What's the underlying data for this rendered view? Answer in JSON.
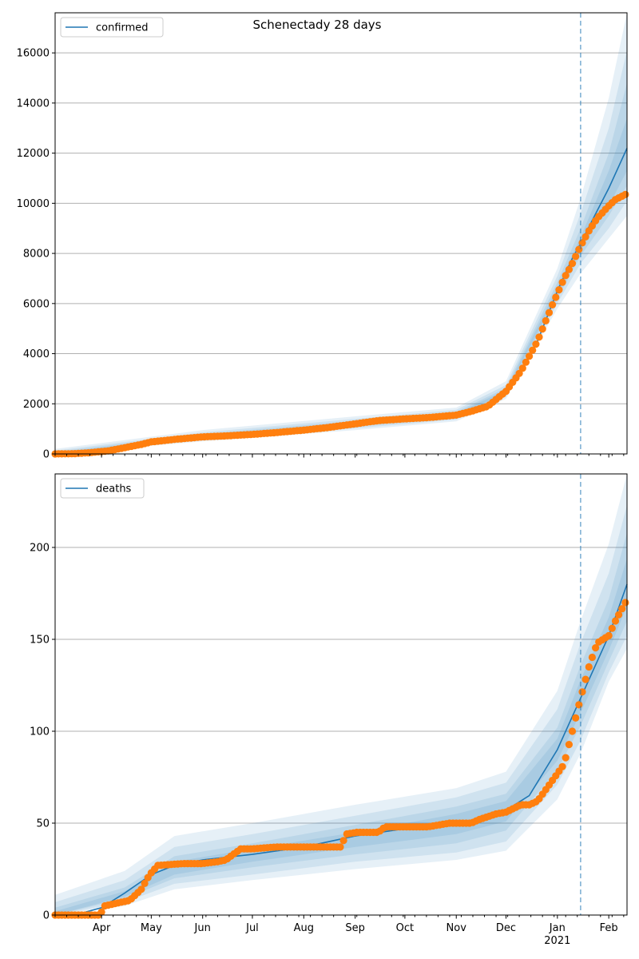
{
  "title": "Schenectady 28 days",
  "colors": {
    "line": "#1f77b4",
    "dots": "#ff7f0e",
    "band": "#1f77b4",
    "grid": "#b0b0b0"
  },
  "x_axis": {
    "domain_start": "2020-03-04",
    "domain_end": "2021-02-12",
    "ticks": [
      {
        "date": "2020-04-01",
        "label": "Apr"
      },
      {
        "date": "2020-05-01",
        "label": "May"
      },
      {
        "date": "2020-06-01",
        "label": "Jun"
      },
      {
        "date": "2020-07-01",
        "label": "Jul"
      },
      {
        "date": "2020-08-01",
        "label": "Aug"
      },
      {
        "date": "2020-09-01",
        "label": "Sep"
      },
      {
        "date": "2020-10-01",
        "label": "Oct"
      },
      {
        "date": "2020-11-01",
        "label": "Nov"
      },
      {
        "date": "2020-12-01",
        "label": "Dec"
      },
      {
        "date": "2021-01-01",
        "label": "Jan",
        "sublabel": "2021"
      },
      {
        "date": "2021-02-01",
        "label": "Feb"
      }
    ],
    "forecast_start": "2021-01-15"
  },
  "chart_data": [
    {
      "type": "line",
      "legend": "confirmed",
      "legend_position": "upper-left",
      "grid": "horizontal",
      "ylim": [
        0,
        17600
      ],
      "yticks": [
        0,
        2000,
        4000,
        6000,
        8000,
        10000,
        12000,
        14000,
        16000
      ],
      "observed": {
        "x": [
          "2020-03-04",
          "2020-03-15",
          "2020-03-25",
          "2020-04-05",
          "2020-04-15",
          "2020-04-25",
          "2020-05-01",
          "2020-05-15",
          "2020-06-01",
          "2020-06-15",
          "2020-07-01",
          "2020-07-15",
          "2020-08-01",
          "2020-08-15",
          "2020-09-01",
          "2020-09-15",
          "2020-10-01",
          "2020-10-15",
          "2020-11-01",
          "2020-11-10",
          "2020-11-20",
          "2020-12-01",
          "2020-12-10",
          "2020-12-20",
          "2020-12-28",
          "2021-01-05",
          "2021-01-10",
          "2021-01-15",
          "2021-01-20",
          "2021-01-25",
          "2021-02-01",
          "2021-02-05",
          "2021-02-11"
        ],
        "y": [
          0,
          10,
          50,
          120,
          250,
          380,
          480,
          580,
          680,
          720,
          780,
          850,
          950,
          1050,
          1200,
          1330,
          1400,
          1450,
          1550,
          1700,
          1900,
          2500,
          3300,
          4500,
          5800,
          7000,
          7600,
          8300,
          8900,
          9400,
          9900,
          10150,
          10350
        ]
      },
      "fit": {
        "x": [
          "2020-03-04",
          "2020-04-01",
          "2020-05-01",
          "2020-06-01",
          "2020-07-01",
          "2020-08-01",
          "2020-09-01",
          "2020-10-01",
          "2020-11-01",
          "2020-11-20",
          "2020-12-01",
          "2020-12-10",
          "2020-12-20",
          "2021-01-01",
          "2021-01-10",
          "2021-01-15",
          "2021-01-25",
          "2021-02-01",
          "2021-02-12"
        ],
        "y": [
          0,
          100,
          480,
          680,
          780,
          950,
          1200,
          1400,
          1550,
          1900,
          2500,
          3300,
          4500,
          6500,
          7800,
          8400,
          9700,
          10600,
          12200
        ]
      },
      "band_x": [
        "2020-03-04",
        "2020-06-01",
        "2020-09-01",
        "2020-11-01",
        "2020-12-01",
        "2021-01-01",
        "2021-01-15",
        "2021-02-01",
        "2021-02-12"
      ],
      "bands": [
        {
          "lower": [
            0,
            500,
            950,
            1300,
            2200,
            5800,
            7200,
            8600,
            9500
          ],
          "upper": [
            200,
            950,
            1500,
            1850,
            2900,
            7400,
            10200,
            14200,
            17600
          ]
        },
        {
          "lower": [
            0,
            560,
            1020,
            1370,
            2300,
            6000,
            7600,
            9000,
            10100
          ],
          "upper": [
            130,
            860,
            1400,
            1760,
            2750,
            7100,
            9600,
            13000,
            16100
          ]
        },
        {
          "lower": [
            0,
            610,
            1090,
            1440,
            2380,
            6200,
            7900,
            9500,
            10700
          ],
          "upper": [
            80,
            790,
            1320,
            1680,
            2630,
            6850,
            9000,
            12000,
            14800
          ]
        },
        {
          "lower": [
            0,
            640,
            1140,
            1490,
            2440,
            6350,
            8150,
            9900,
            11300
          ],
          "upper": [
            40,
            740,
            1260,
            1620,
            2550,
            6650,
            8650,
            11300,
            13400
          ]
        }
      ]
    },
    {
      "type": "line",
      "legend": "deaths",
      "legend_position": "upper-left",
      "grid": "horizontal",
      "ylim": [
        0,
        240
      ],
      "yticks": [
        0,
        50,
        100,
        150,
        200
      ],
      "observed": {
        "x": [
          "2020-03-04",
          "2020-03-31",
          "2020-04-03",
          "2020-04-13",
          "2020-04-18",
          "2020-04-25",
          "2020-04-30",
          "2020-05-05",
          "2020-05-20",
          "2020-06-01",
          "2020-06-10",
          "2020-06-15",
          "2020-06-24",
          "2020-07-01",
          "2020-07-15",
          "2020-08-01",
          "2020-08-24",
          "2020-08-26",
          "2020-09-02",
          "2020-09-15",
          "2020-09-19",
          "2020-10-01",
          "2020-10-15",
          "2020-10-28",
          "2020-11-10",
          "2020-11-15",
          "2020-11-25",
          "2020-12-01",
          "2020-12-10",
          "2020-12-15",
          "2020-12-20",
          "2020-12-28",
          "2021-01-05",
          "2021-01-10",
          "2021-01-15",
          "2021-01-20",
          "2021-01-25",
          "2021-02-01",
          "2021-02-05",
          "2021-02-11"
        ],
        "y": [
          0,
          0,
          5,
          7,
          8,
          14,
          22,
          27,
          28,
          28,
          29,
          30,
          36,
          36,
          37,
          37,
          37,
          44,
          45,
          45,
          48,
          48,
          48,
          50,
          50,
          52,
          55,
          56,
          60,
          60,
          62,
          72,
          82,
          100,
          118,
          135,
          148,
          152,
          160,
          170
        ]
      },
      "fit": {
        "x": [
          "2020-03-04",
          "2020-03-20",
          "2020-04-01",
          "2020-04-15",
          "2020-05-01",
          "2020-05-15",
          "2020-06-01",
          "2020-07-01",
          "2020-08-01",
          "2020-09-01",
          "2020-10-01",
          "2020-11-01",
          "2020-11-20",
          "2020-12-01",
          "2020-12-15",
          "2021-01-01",
          "2021-01-15",
          "2021-02-01",
          "2021-02-12"
        ],
        "y": [
          0,
          1,
          4,
          12,
          22,
          27,
          30,
          33,
          37,
          43,
          47,
          50,
          53,
          57,
          65,
          90,
          118,
          152,
          180
        ]
      },
      "band_x": [
        "2020-03-04",
        "2020-04-15",
        "2020-05-15",
        "2020-07-01",
        "2020-09-01",
        "2020-11-01",
        "2020-12-01",
        "2021-01-01",
        "2021-01-15",
        "2021-02-01",
        "2021-02-12"
      ],
      "bands": [
        {
          "lower": [
            0,
            5,
            14,
            19,
            25,
            30,
            35,
            63,
            88,
            127,
            145
          ],
          "upper": [
            11,
            24,
            43,
            50,
            60,
            69,
            78,
            122,
            160,
            202,
            240
          ]
        },
        {
          "lower": [
            0,
            7,
            17,
            22,
            29,
            34,
            40,
            71,
            95,
            132,
            152
          ],
          "upper": [
            7,
            19,
            37,
            44,
            54,
            64,
            72,
            112,
            148,
            186,
            223
          ]
        },
        {
          "lower": [
            0,
            9,
            20,
            26,
            33,
            39,
            46,
            79,
            103,
            138,
            160
          ],
          "upper": [
            4,
            15,
            32,
            39,
            49,
            59,
            66,
            102,
            136,
            172,
            208
          ]
        },
        {
          "lower": [
            0,
            10,
            22,
            29,
            37,
            44,
            51,
            84,
            110,
            144,
            168
          ],
          "upper": [
            2,
            13,
            29,
            36,
            45,
            55,
            62,
            96,
            128,
            162,
            194
          ]
        }
      ]
    }
  ]
}
